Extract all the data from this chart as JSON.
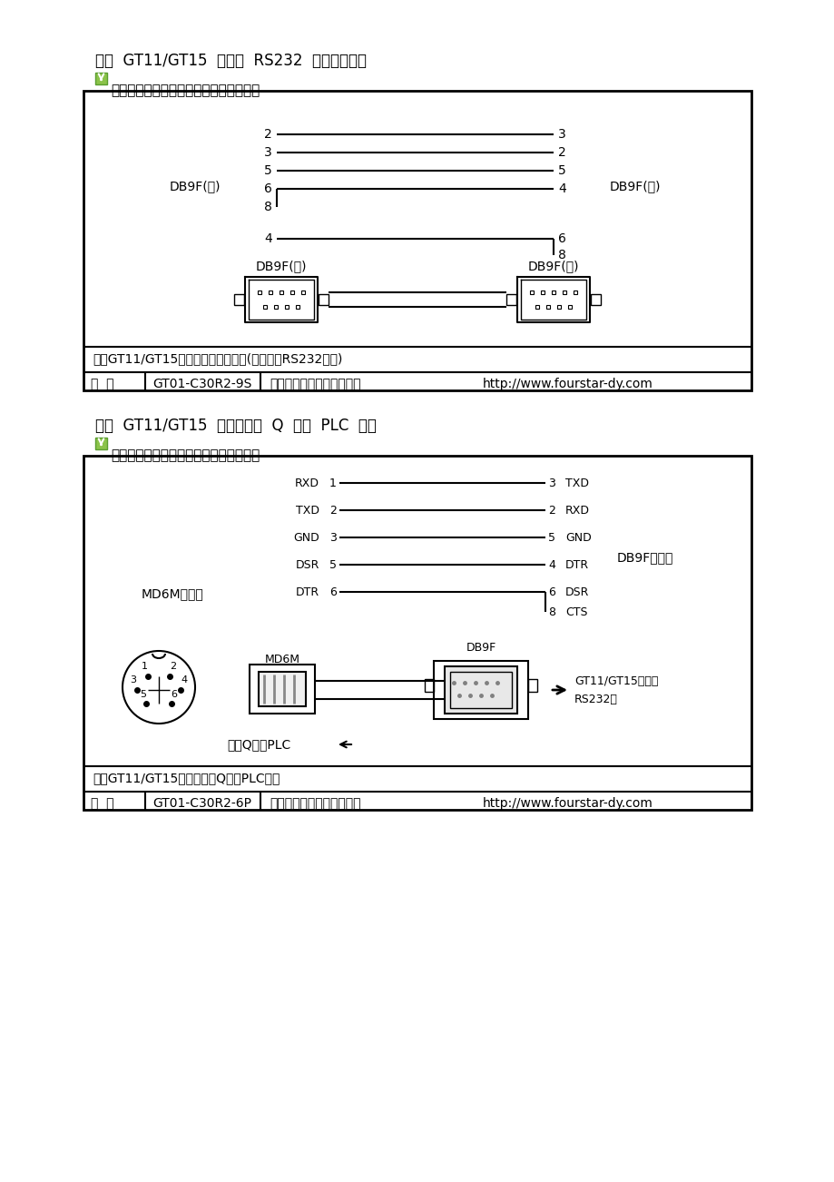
{
  "bg_color": "#ffffff",
  "title1": "三菱  GT11/GT15  触摸屏  RS232  串口编程电缆",
  "subtitle1": "此主题相关图片如下，点击图片看大图：",
  "title2": "三菱  GT11/GT15  触摸屏连接  Q  系列  PLC  电缆",
  "subtitle2": "此主题相关图片如下，点击图片看大图：",
  "box1_desc": "三菱GT11/GT15触摸屏串口编程电缆(连接电脑RS232串口)",
  "box1_model": "GT01-C30R2-9S",
  "box1_company": "德阳四星电子技术开发中心",
  "box1_url": "http://www.fourstar-dy.com",
  "box2_desc": "三菱GT11/GT15触摸屏连接Q系列PLC电缆",
  "box2_model": "GT01-C30R2-6P",
  "box2_company": "德阳四星电子技术开发中心",
  "box2_url": "http://www.fourstar-dy.com",
  "line_color": "#000000",
  "wire_color": "#555555"
}
